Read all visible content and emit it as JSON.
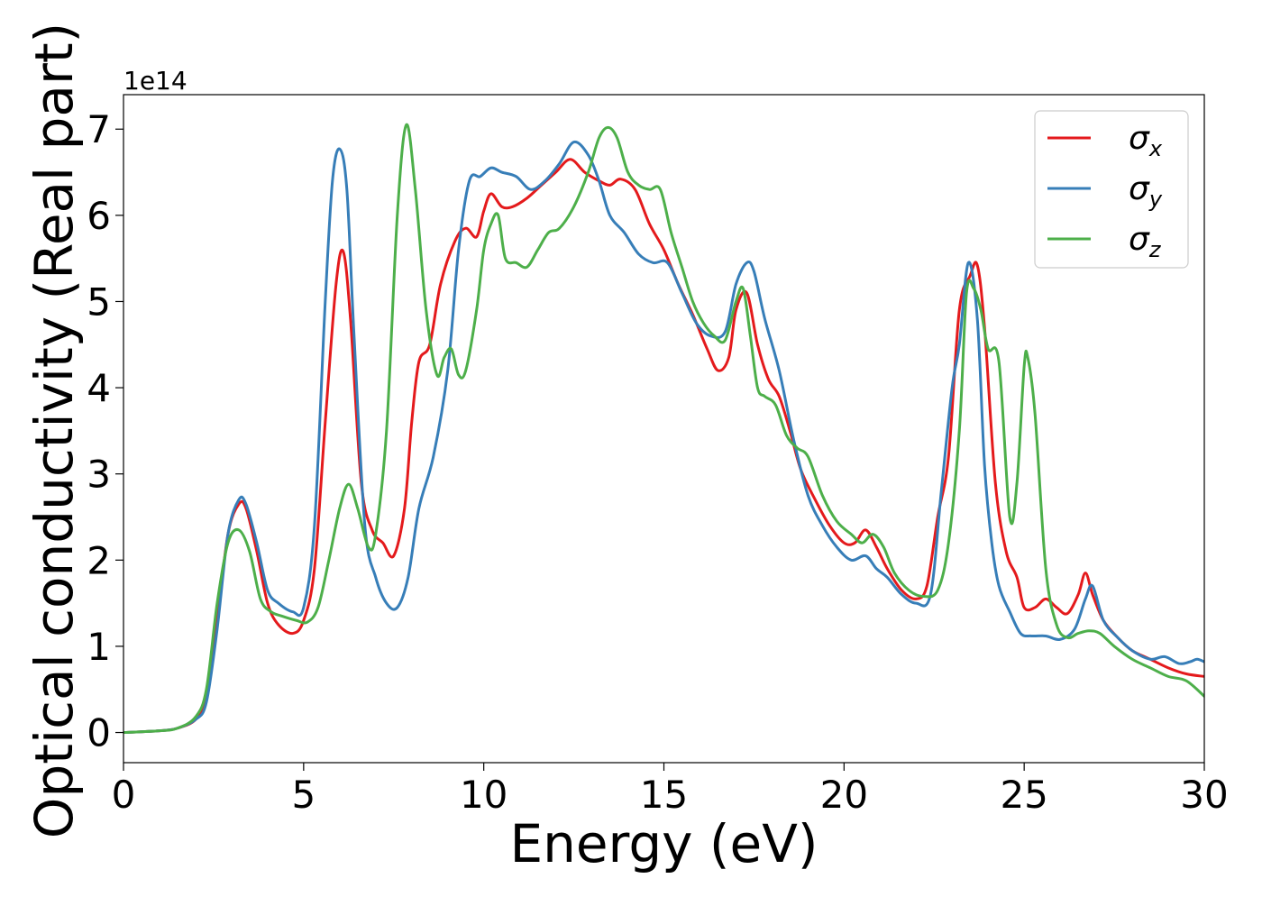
{
  "chart_data": {
    "type": "line",
    "xlabel": "Energy (eV)",
    "ylabel": "Optical conductivity (Real part)",
    "y_offset_text": "1e14",
    "xlim": [
      0,
      30
    ],
    "ylim": [
      -0.35,
      7.4
    ],
    "y_scale_factor": 100000000000000.0,
    "x_ticks": [
      0,
      5,
      10,
      15,
      20,
      25,
      30
    ],
    "y_ticks": [
      0,
      1,
      2,
      3,
      4,
      5,
      6,
      7
    ],
    "grid": false,
    "legend_position": "top-right",
    "series": [
      {
        "name": "σx",
        "symbol": "σ",
        "subscript": "x",
        "color": "#e41a1c",
        "x": [
          0,
          1,
          1.5,
          2,
          2.3,
          2.6,
          2.9,
          3.2,
          3.4,
          3.7,
          4.0,
          4.3,
          4.7,
          5.0,
          5.3,
          5.6,
          5.9,
          6.1,
          6.3,
          6.6,
          6.9,
          7.2,
          7.5,
          7.8,
          8.0,
          8.2,
          8.5,
          8.8,
          9.2,
          9.5,
          9.8,
          10.0,
          10.2,
          10.5,
          10.8,
          11.2,
          11.6,
          12.0,
          12.4,
          12.8,
          13.2,
          13.5,
          13.8,
          14.2,
          14.6,
          15.0,
          15.4,
          15.8,
          16.2,
          16.5,
          16.8,
          17.0,
          17.3,
          17.6,
          17.9,
          18.2,
          18.5,
          18.8,
          19.2,
          19.6,
          20.0,
          20.3,
          20.6,
          20.9,
          21.2,
          21.6,
          22.0,
          22.3,
          22.6,
          22.9,
          23.2,
          23.5,
          23.7,
          23.9,
          24.2,
          24.5,
          24.8,
          25.0,
          25.3,
          25.6,
          25.9,
          26.2,
          26.5,
          26.7,
          26.9,
          27.2,
          27.6,
          28.0,
          28.5,
          29.0,
          29.5,
          30.0
        ],
        "y": [
          0,
          0.02,
          0.05,
          0.15,
          0.4,
          1.3,
          2.3,
          2.65,
          2.6,
          2.1,
          1.5,
          1.25,
          1.15,
          1.3,
          1.9,
          3.6,
          5.2,
          5.58,
          4.8,
          2.9,
          2.35,
          2.2,
          2.05,
          2.6,
          3.6,
          4.3,
          4.5,
          5.2,
          5.7,
          5.85,
          5.75,
          6.05,
          6.25,
          6.1,
          6.1,
          6.2,
          6.35,
          6.5,
          6.65,
          6.5,
          6.4,
          6.35,
          6.42,
          6.3,
          5.9,
          5.6,
          5.2,
          4.85,
          4.45,
          4.2,
          4.35,
          4.9,
          5.1,
          4.5,
          4.1,
          3.9,
          3.5,
          3.05,
          2.7,
          2.4,
          2.2,
          2.2,
          2.35,
          2.15,
          1.9,
          1.65,
          1.55,
          1.7,
          2.5,
          3.2,
          4.9,
          5.3,
          5.42,
          4.7,
          2.9,
          2.1,
          1.8,
          1.45,
          1.45,
          1.55,
          1.45,
          1.38,
          1.6,
          1.85,
          1.6,
          1.3,
          1.1,
          0.95,
          0.85,
          0.75,
          0.68,
          0.65
        ]
      },
      {
        "name": "σy",
        "symbol": "σ",
        "subscript": "y",
        "color": "#377eb8",
        "x": [
          0,
          1,
          1.5,
          2,
          2.3,
          2.6,
          2.9,
          3.2,
          3.4,
          3.7,
          4.0,
          4.3,
          4.7,
          5.0,
          5.3,
          5.6,
          5.8,
          6.0,
          6.2,
          6.4,
          6.7,
          7.0,
          7.3,
          7.6,
          7.9,
          8.2,
          8.6,
          9.0,
          9.3,
          9.6,
          9.9,
          10.2,
          10.5,
          10.9,
          11.3,
          11.7,
          12.1,
          12.5,
          12.9,
          13.2,
          13.5,
          13.9,
          14.3,
          14.7,
          15.1,
          15.5,
          15.9,
          16.3,
          16.7,
          17.0,
          17.3,
          17.5,
          17.8,
          18.2,
          18.6,
          19.0,
          19.4,
          19.8,
          20.2,
          20.6,
          20.9,
          21.2,
          21.6,
          22.0,
          22.4,
          22.7,
          23.0,
          23.2,
          23.45,
          23.7,
          23.9,
          24.1,
          24.3,
          24.6,
          24.9,
          25.2,
          25.6,
          26.0,
          26.4,
          26.7,
          26.9,
          27.2,
          27.6,
          28.0,
          28.5,
          28.9,
          29.3,
          29.6,
          29.8,
          30.0
        ],
        "y": [
          0,
          0.02,
          0.05,
          0.15,
          0.35,
          1.2,
          2.3,
          2.7,
          2.65,
          2.2,
          1.65,
          1.5,
          1.4,
          1.45,
          2.4,
          5.0,
          6.4,
          6.77,
          6.3,
          4.6,
          2.4,
          1.8,
          1.5,
          1.45,
          1.8,
          2.6,
          3.2,
          4.2,
          5.6,
          6.4,
          6.45,
          6.55,
          6.5,
          6.45,
          6.3,
          6.4,
          6.6,
          6.85,
          6.7,
          6.4,
          6.0,
          5.8,
          5.55,
          5.45,
          5.45,
          5.1,
          4.75,
          4.6,
          4.65,
          5.2,
          5.45,
          5.35,
          4.8,
          4.2,
          3.4,
          2.75,
          2.4,
          2.15,
          2.0,
          2.05,
          1.9,
          1.8,
          1.6,
          1.5,
          1.6,
          2.8,
          4.0,
          4.5,
          5.45,
          4.8,
          3.1,
          2.2,
          1.7,
          1.4,
          1.15,
          1.12,
          1.12,
          1.08,
          1.2,
          1.55,
          1.7,
          1.3,
          1.1,
          0.95,
          0.85,
          0.88,
          0.8,
          0.82,
          0.85,
          0.82
        ]
      },
      {
        "name": "σz",
        "symbol": "σ",
        "subscript": "z",
        "color": "#4daf4a",
        "x": [
          0,
          1,
          1.5,
          2,
          2.3,
          2.6,
          2.9,
          3.2,
          3.5,
          3.8,
          4.1,
          4.4,
          4.8,
          5.1,
          5.4,
          5.7,
          6.0,
          6.25,
          6.5,
          6.8,
          7.0,
          7.3,
          7.6,
          7.85,
          8.1,
          8.4,
          8.7,
          8.9,
          9.1,
          9.3,
          9.5,
          9.8,
          10.0,
          10.2,
          10.4,
          10.6,
          10.9,
          11.2,
          11.5,
          11.8,
          12.1,
          12.5,
          12.9,
          13.2,
          13.45,
          13.7,
          14.0,
          14.3,
          14.6,
          14.9,
          15.2,
          15.5,
          15.8,
          16.1,
          16.4,
          16.7,
          17.0,
          17.2,
          17.4,
          17.6,
          17.8,
          18.1,
          18.4,
          18.7,
          19.0,
          19.4,
          19.8,
          20.2,
          20.5,
          20.8,
          21.1,
          21.4,
          21.8,
          22.2,
          22.6,
          22.9,
          23.2,
          23.4,
          23.6,
          23.8,
          24.0,
          24.3,
          24.6,
          24.8,
          25.0,
          25.1,
          25.3,
          25.6,
          25.9,
          26.2,
          26.5,
          26.8,
          27.1,
          27.5,
          28.0,
          28.5,
          29.0,
          29.5,
          30.0
        ],
        "y": [
          0,
          0.02,
          0.05,
          0.18,
          0.5,
          1.5,
          2.2,
          2.35,
          2.1,
          1.55,
          1.4,
          1.35,
          1.3,
          1.28,
          1.45,
          2.0,
          2.6,
          2.88,
          2.6,
          2.15,
          2.3,
          3.5,
          6.0,
          7.05,
          6.3,
          4.9,
          4.15,
          4.35,
          4.45,
          4.15,
          4.2,
          4.9,
          5.6,
          5.9,
          6.0,
          5.5,
          5.45,
          5.4,
          5.6,
          5.8,
          5.85,
          6.1,
          6.5,
          6.9,
          7.02,
          6.9,
          6.5,
          6.35,
          6.3,
          6.3,
          5.8,
          5.4,
          5.0,
          4.75,
          4.6,
          4.55,
          5.0,
          5.15,
          4.6,
          4.0,
          3.9,
          3.8,
          3.45,
          3.3,
          3.2,
          2.75,
          2.45,
          2.3,
          2.2,
          2.3,
          2.15,
          1.85,
          1.65,
          1.58,
          1.65,
          2.2,
          3.5,
          5.1,
          5.15,
          4.9,
          4.45,
          4.3,
          2.5,
          2.9,
          4.25,
          4.35,
          3.7,
          1.9,
          1.25,
          1.1,
          1.15,
          1.18,
          1.15,
          1.0,
          0.85,
          0.75,
          0.65,
          0.6,
          0.42
        ]
      }
    ]
  }
}
